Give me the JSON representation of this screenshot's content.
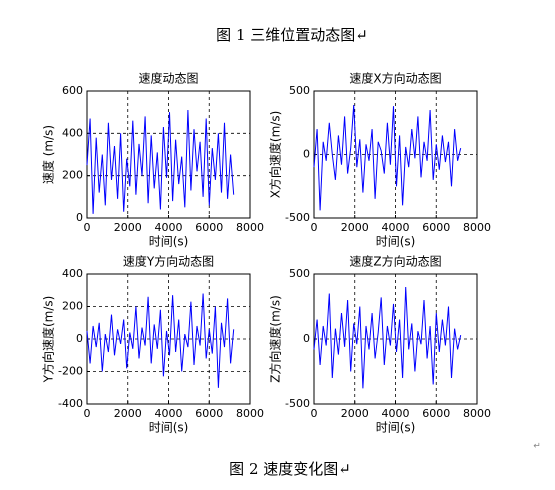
{
  "header": "图 1  三维位置动态图↵",
  "caption": "图 2  速度变化图↵",
  "mark": "↵",
  "chart_data": [
    {
      "type": "line",
      "title": "速度动态图",
      "xlabel": "时间(s)",
      "ylabel": "速度 (m/s)",
      "xlim": [
        0,
        8000
      ],
      "xticks": [
        0,
        2000,
        4000,
        6000,
        8000
      ],
      "ylim": [
        0,
        600
      ],
      "yticks": [
        0,
        200,
        400,
        600
      ],
      "grid": true,
      "x": [
        0,
        150,
        300,
        450,
        600,
        750,
        900,
        1050,
        1200,
        1350,
        1500,
        1650,
        1800,
        1950,
        2100,
        2250,
        2400,
        2550,
        2700,
        2850,
        3000,
        3150,
        3300,
        3450,
        3600,
        3750,
        3900,
        4050,
        4200,
        4350,
        4500,
        4650,
        4800,
        4950,
        5100,
        5250,
        5400,
        5550,
        5700,
        5850,
        6000,
        6150,
        6300,
        6450,
        6600,
        6750,
        6900,
        7050,
        7200
      ],
      "series": [
        {
          "color": "#0000ff",
          "values": [
            250,
            470,
            20,
            380,
            120,
            300,
            60,
            450,
            180,
            340,
            90,
            400,
            30,
            280,
            150,
            460,
            110,
            350,
            200,
            480,
            70,
            390,
            140,
            310,
            40,
            430,
            190,
            500,
            80,
            370,
            160,
            290,
            50,
            510,
            130,
            420,
            220,
            360,
            100,
            470,
            60,
            330,
            180,
            400,
            120,
            450,
            90,
            300,
            110
          ]
        }
      ]
    },
    {
      "type": "line",
      "title": "速度X方向动态图",
      "xlabel": "时间(s)",
      "ylabel": "X方向速度(m/s)",
      "xlim": [
        0,
        8000
      ],
      "xticks": [
        0,
        2000,
        4000,
        6000,
        8000
      ],
      "ylim": [
        -500,
        500
      ],
      "yticks": [
        -500,
        0,
        500
      ],
      "grid": true,
      "x": [
        0,
        150,
        300,
        450,
        600,
        750,
        900,
        1050,
        1200,
        1350,
        1500,
        1650,
        1800,
        1950,
        2100,
        2250,
        2400,
        2550,
        2700,
        2850,
        3000,
        3150,
        3300,
        3450,
        3600,
        3750,
        3900,
        4050,
        4200,
        4350,
        4500,
        4650,
        4800,
        4950,
        5100,
        5250,
        5400,
        5550,
        5700,
        5850,
        6000,
        6150,
        6300,
        6450,
        6600,
        6750,
        6900,
        7050,
        7200
      ],
      "series": [
        {
          "color": "#0000ff",
          "values": [
            -100,
            200,
            -440,
            100,
            -50,
            250,
            0,
            -200,
            150,
            -80,
            300,
            -150,
            50,
            390,
            -100,
            120,
            -300,
            80,
            -50,
            200,
            -350,
            100,
            30,
            -150,
            250,
            -80,
            380,
            -250,
            150,
            -400,
            60,
            -100,
            200,
            -30,
            300,
            -180,
            100,
            -50,
            350,
            -200,
            80,
            -120,
            150,
            -60,
            100,
            -250,
            200,
            -50,
            50
          ]
        }
      ]
    },
    {
      "type": "line",
      "title": "速度Y方向动态图",
      "xlabel": "时间(s)",
      "ylabel": "Y方向速度(m/s)",
      "xlim": [
        0,
        8000
      ],
      "xticks": [
        0,
        2000,
        4000,
        6000,
        8000
      ],
      "ylim": [
        -400,
        400
      ],
      "yticks": [
        -400,
        -200,
        0,
        200,
        400
      ],
      "grid": true,
      "x": [
        0,
        150,
        300,
        450,
        600,
        750,
        900,
        1050,
        1200,
        1350,
        1500,
        1650,
        1800,
        1950,
        2100,
        2250,
        2400,
        2550,
        2700,
        2850,
        3000,
        3150,
        3300,
        3450,
        3600,
        3750,
        3900,
        4050,
        4200,
        4350,
        4500,
        4650,
        4800,
        4950,
        5100,
        5250,
        5400,
        5550,
        5700,
        5850,
        6000,
        6150,
        6300,
        6450,
        6600,
        6750,
        6900,
        7050,
        7200
      ],
      "series": [
        {
          "color": "#0000ff",
          "values": [
            50,
            -150,
            80,
            -50,
            100,
            -200,
            30,
            -80,
            150,
            -100,
            60,
            -30,
            120,
            -180,
            40,
            -60,
            200,
            -120,
            70,
            -40,
            260,
            -150,
            90,
            -60,
            180,
            -230,
            50,
            -100,
            270,
            -80,
            120,
            -200,
            30,
            -50,
            230,
            -160,
            80,
            -40,
            280,
            -120,
            60,
            -90,
            200,
            -300,
            100,
            -50,
            250,
            -150,
            60
          ]
        }
      ]
    },
    {
      "type": "line",
      "title": "速度Z方向动态图",
      "xlabel": "时间(s)",
      "ylabel": "Z方向速度(m/s)",
      "xlim": [
        0,
        8000
      ],
      "xticks": [
        0,
        2000,
        4000,
        6000,
        8000
      ],
      "ylim": [
        -500,
        500
      ],
      "yticks": [
        -500,
        0,
        500
      ],
      "grid": true,
      "x": [
        0,
        150,
        300,
        450,
        600,
        750,
        900,
        1050,
        1200,
        1350,
        1500,
        1650,
        1800,
        1950,
        2100,
        2250,
        2400,
        2550,
        2700,
        2850,
        3000,
        3150,
        3300,
        3450,
        3600,
        3750,
        3900,
        4050,
        4200,
        4350,
        4500,
        4650,
        4800,
        4950,
        5100,
        5250,
        5400,
        5550,
        5700,
        5850,
        6000,
        6150,
        6300,
        6450,
        6600,
        6750,
        6900,
        7050,
        7200
      ],
      "series": [
        {
          "color": "#0000ff",
          "values": [
            -80,
            150,
            -200,
            100,
            -50,
            350,
            -300,
            80,
            -120,
            200,
            -60,
            300,
            -250,
            120,
            -40,
            250,
            -380,
            100,
            -80,
            200,
            -150,
            50,
            320,
            -200,
            100,
            -50,
            270,
            -100,
            150,
            -300,
            400,
            -80,
            120,
            -250,
            60,
            -40,
            300,
            -150,
            100,
            -350,
            200,
            -100,
            150,
            -50,
            250,
            -300,
            80,
            -80,
            30
          ]
        }
      ]
    }
  ]
}
